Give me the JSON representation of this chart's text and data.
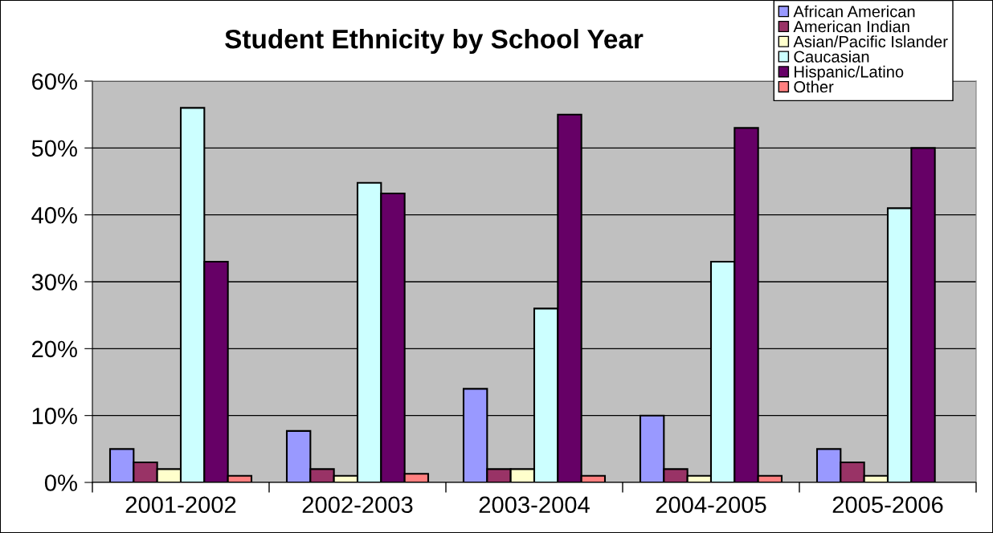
{
  "chart_data": {
    "type": "bar",
    "title": "Student Ethnicity by School Year",
    "categories": [
      "2001-2002",
      "2002-2003",
      "2003-2004",
      "2004-2005",
      "2005-2006"
    ],
    "series": [
      {
        "name": "African American",
        "color": "#9999ff",
        "values": [
          5,
          7.7,
          14,
          10,
          5
        ]
      },
      {
        "name": "American Indian",
        "color": "#993366",
        "values": [
          3,
          2,
          2,
          2,
          3
        ]
      },
      {
        "name": "Asian/Pacific Islander",
        "color": "#ffffcc",
        "values": [
          2,
          1,
          2,
          1,
          1
        ]
      },
      {
        "name": "Caucasian",
        "color": "#ccffff",
        "values": [
          56,
          44.8,
          26,
          33,
          41
        ]
      },
      {
        "name": "Hispanic/Latino",
        "color": "#660066",
        "values": [
          33,
          43.2,
          55,
          53,
          50
        ]
      },
      {
        "name": "Other",
        "color": "#ff8080",
        "values": [
          1,
          1.3,
          1,
          1,
          null
        ]
      }
    ],
    "ylim": [
      0,
      60
    ],
    "yticks": [
      {
        "value": 0,
        "label": "0%"
      },
      {
        "value": 10,
        "label": "10%"
      },
      {
        "value": 20,
        "label": "20%"
      },
      {
        "value": 30,
        "label": "30%"
      },
      {
        "value": 40,
        "label": "40%"
      },
      {
        "value": 50,
        "label": "50%"
      },
      {
        "value": 60,
        "label": "60%"
      }
    ],
    "grid": "y",
    "legend": "top right"
  }
}
